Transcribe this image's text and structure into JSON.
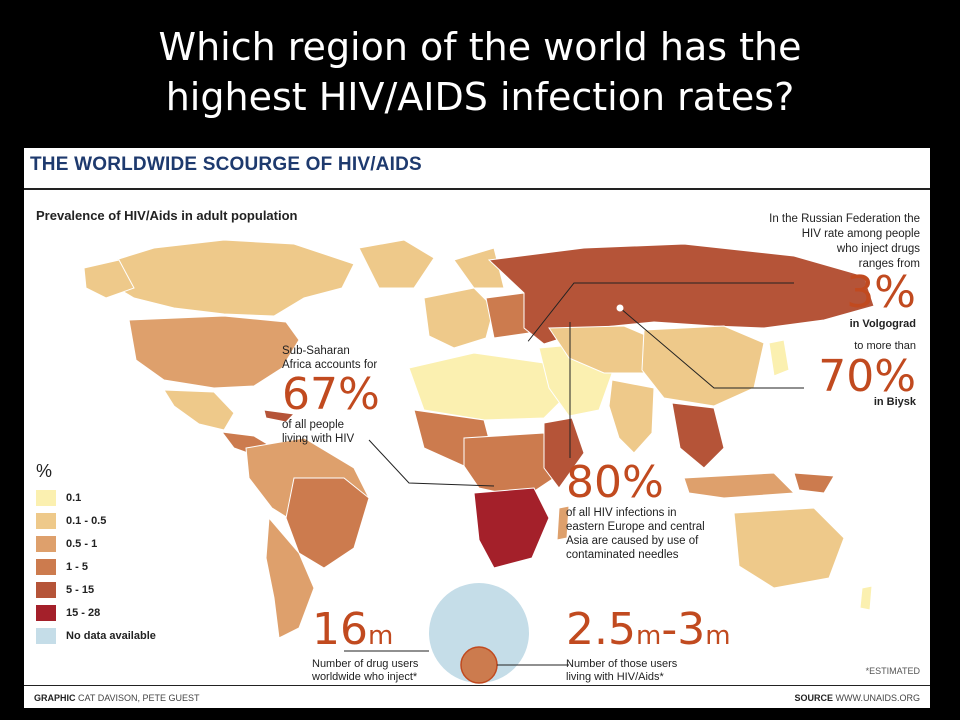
{
  "slide": {
    "title_line1": "Which region of the world has the",
    "title_line2": "highest HIV/AIDS infection rates?"
  },
  "infographic": {
    "title": "THE WORLDWIDE SCOURGE OF HIV/AIDS",
    "subtitle": "Prevalence of HIV/Aids in adult population",
    "russia_note": [
      "In the Russian Federation the",
      "HIV rate among people",
      "who inject drugs",
      "ranges from"
    ],
    "volgograd_value": "3%",
    "volgograd_label": "in Volgograd",
    "more_than": "to more than",
    "biysk_value": "70%",
    "biysk_label": "in Biysk",
    "africa_intro": [
      "Sub-Saharan",
      "Africa accounts for"
    ],
    "africa_value": "67%",
    "africa_tail": [
      "of all people",
      "living with HIV"
    ],
    "needles_value": "80%",
    "needles_text": [
      "of all HIV infections in",
      "eastern Europe and central",
      "Asia are caused by use of",
      "contaminated needles"
    ],
    "drug_users_value": "16",
    "drug_users_unit": "m",
    "drug_users_text": [
      "Number of drug users",
      "worldwide who inject*"
    ],
    "hiv_users_value_a": "2.5",
    "hiv_users_unit_a": "m",
    "hiv_users_dash": "-",
    "hiv_users_value_b": "3",
    "hiv_users_unit_b": "m",
    "hiv_users_text": [
      "Number of those users",
      "living with HIV/Aids*"
    ],
    "estimated": "*ESTIMATED",
    "graphic_label": "GRAPHIC",
    "graphic_credit": "CAT DAVISON, PETE GUEST",
    "source_label": "SOURCE",
    "source_credit": "WWW.UNAIDS.ORG"
  },
  "legend": {
    "heading": "%",
    "items": [
      {
        "label": "0.1",
        "color": "#fbf0b0"
      },
      {
        "label": "0.1 - 0.5",
        "color": "#eec98a"
      },
      {
        "label": "0.5 - 1",
        "color": "#dea06c"
      },
      {
        "label": "1 - 5",
        "color": "#cc7b4e"
      },
      {
        "label": "5 - 15",
        "color": "#b55438"
      },
      {
        "label": "15 - 28",
        "color": "#a4202a"
      },
      {
        "label": "No data available",
        "color": "#c5dde8"
      }
    ]
  },
  "colors": {
    "accent": "#c14a1f",
    "title_blue": "#1e3a6e"
  }
}
